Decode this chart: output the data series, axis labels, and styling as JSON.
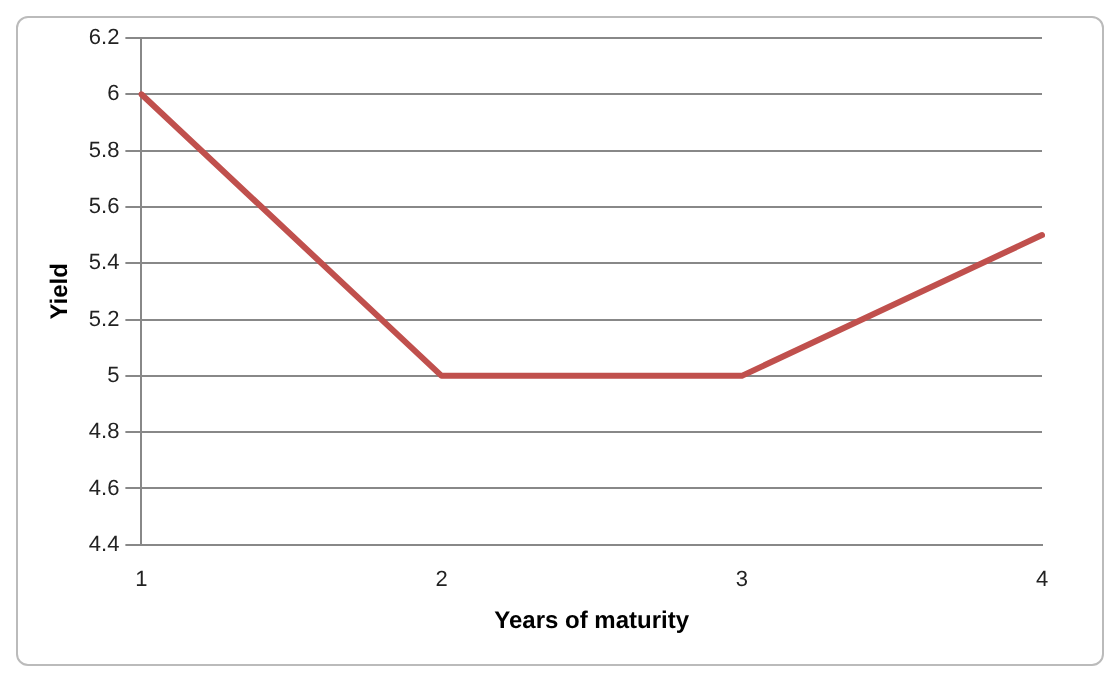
{
  "chart_data": {
    "type": "line",
    "xlabel": "Years of maturity",
    "ylabel": "Yield",
    "categories": [
      "1",
      "2",
      "3",
      "4"
    ],
    "series": [
      {
        "color": "#c0504d",
        "values": [
          6,
          5,
          5,
          5.5
        ]
      }
    ],
    "ylim": [
      4.4,
      6.2
    ],
    "yticks": [
      4.4,
      4.6,
      4.8,
      5,
      5.2,
      5.4,
      5.6,
      5.8,
      6,
      6.2
    ],
    "grid": "y",
    "legend": false,
    "marker": "none",
    "line_style": "solid"
  }
}
